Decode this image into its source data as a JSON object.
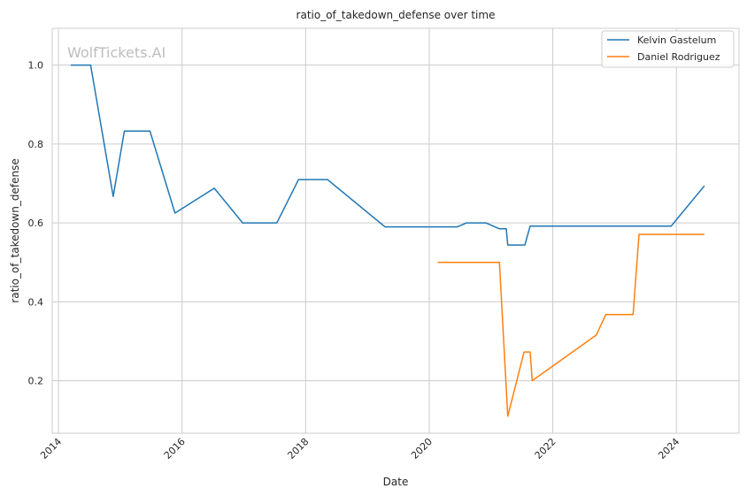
{
  "chart_data": {
    "type": "line",
    "title": "ratio_of_takedown_defense over time",
    "xlabel": "Date",
    "ylabel": "ratio_of_takedown_defense",
    "watermark": "WolfTickets.AI",
    "xlim": [
      "2013-11-25",
      "2025-01-06"
    ],
    "ylim": [
      0.067,
      1.0933
    ],
    "x_ticks": [
      "2014",
      "2016",
      "2018",
      "2020",
      "2022",
      "2024"
    ],
    "y_ticks": [
      "0.2",
      "0.4",
      "0.6",
      "0.8",
      "1.0"
    ],
    "grid": true,
    "legend_position": "top-right",
    "series": [
      {
        "name": "Kelvin Gastelum",
        "color": "#1f77b4",
        "points": [
          [
            "2014-03-15",
            1.0
          ],
          [
            "2014-07-10",
            1.0
          ],
          [
            "2014-11-20",
            0.667
          ],
          [
            "2015-01-25",
            0.833
          ],
          [
            "2015-06-25",
            0.833
          ],
          [
            "2015-11-20",
            0.625
          ],
          [
            "2016-07-10",
            0.688
          ],
          [
            "2016-12-25",
            0.6
          ],
          [
            "2017-07-15",
            0.6
          ],
          [
            "2017-11-20",
            0.71
          ],
          [
            "2018-05-10",
            0.71
          ],
          [
            "2019-04-15",
            0.59
          ],
          [
            "2020-06-15",
            0.59
          ],
          [
            "2020-08-10",
            0.6
          ],
          [
            "2020-12-01",
            0.6
          ],
          [
            "2021-02-20",
            0.585
          ],
          [
            "2021-04-01",
            0.585
          ],
          [
            "2021-04-10",
            0.544
          ],
          [
            "2021-07-20",
            0.544
          ],
          [
            "2021-08-20",
            0.592
          ],
          [
            "2023-12-01",
            0.592
          ],
          [
            "2024-06-15",
            0.694
          ]
        ]
      },
      {
        "name": "Daniel Rodriguez",
        "color": "#ff7f0e",
        "points": [
          [
            "2020-02-20",
            0.5
          ],
          [
            "2021-02-20",
            0.5
          ],
          [
            "2021-04-10",
            0.11
          ],
          [
            "2021-07-15",
            0.273
          ],
          [
            "2021-08-20",
            0.273
          ],
          [
            "2021-09-01",
            0.2
          ],
          [
            "2022-09-15",
            0.316
          ],
          [
            "2022-11-10",
            0.368
          ],
          [
            "2023-04-20",
            0.368
          ],
          [
            "2023-05-25",
            0.571
          ],
          [
            "2024-06-15",
            0.571
          ]
        ]
      }
    ]
  }
}
